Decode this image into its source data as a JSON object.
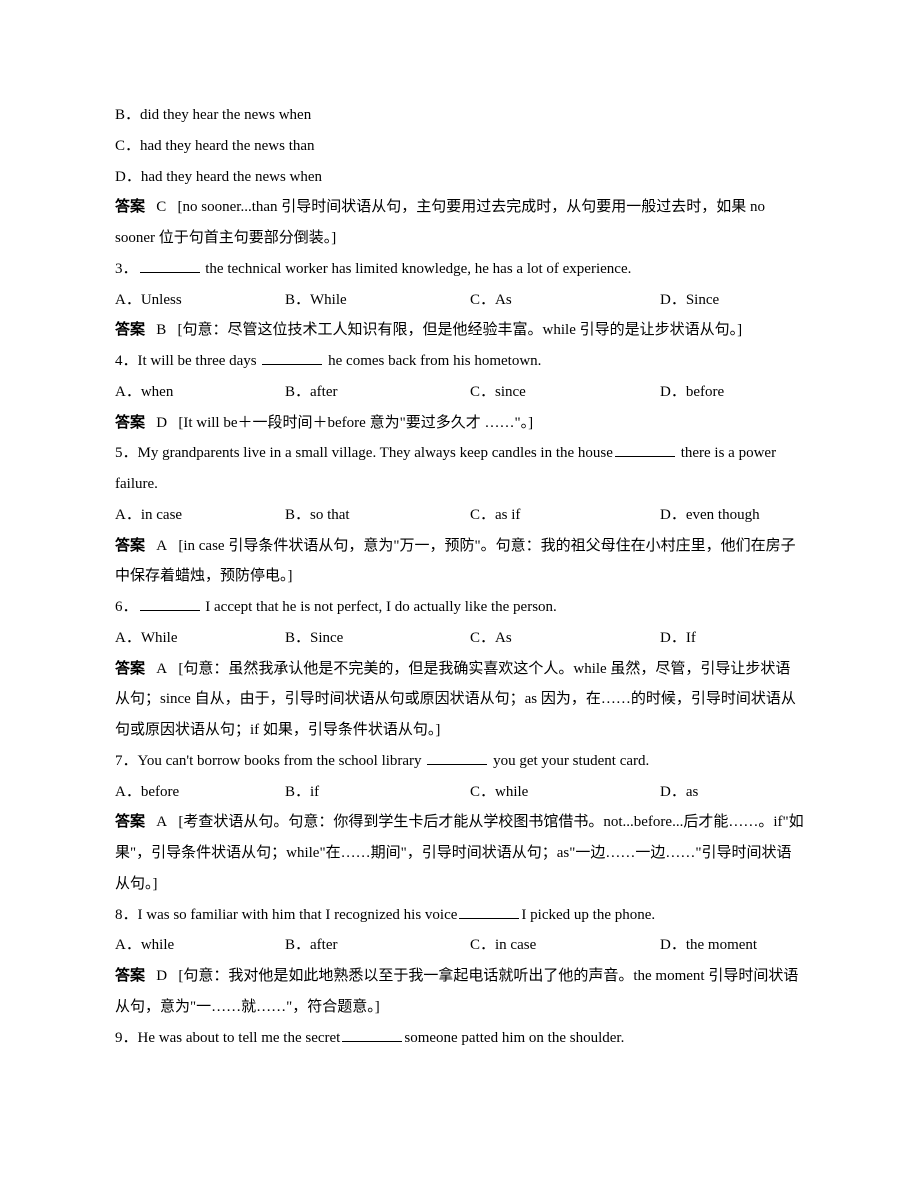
{
  "q2": {
    "optB": "B．did they hear the news when",
    "optC": "C．had they heard the news than",
    "optD": "D．had they heard the news when",
    "answerLabel": "答案",
    "answerLetter": "C",
    "explanation": "[no sooner...than 引导时间状语从句，主句要用过去完成时，从句要用一般过去时，如果 no sooner 位于句首主句要部分倒装。]"
  },
  "q3": {
    "numPrefix": "3．",
    "stemAfter": " the technical worker has limited knowledge, he has a lot of experience.",
    "optA": "A．Unless",
    "optB": "B．While",
    "optC": "C．As",
    "optD": "D．Since",
    "answerLabel": "答案",
    "answerLetter": "B",
    "explanation": "[句意：尽管这位技术工人知识有限，但是他经验丰富。while 引导的是让步状语从句。]"
  },
  "q4": {
    "numPrefix": "4．It will be three days ",
    "stemAfter": " he comes back from his hometown.",
    "optA": "A．when",
    "optB": "B．after",
    "optC": "C．since",
    "optD": "D．before",
    "answerLabel": "答案",
    "answerLetter": "D",
    "explanation": "[It will be＋一段时间＋before 意为\"要过多久才 ……\"。]"
  },
  "q5": {
    "numPrefix": "5．My grandparents live in a small village. They always keep candles in the house",
    "stemAfter": " there is a power failure.",
    "optA": "A．in case",
    "optB": "B．so that",
    "optC": "C．as if",
    "optD": "D．even though",
    "answerLabel": "答案",
    "answerLetter": "A",
    "explanation": "[in case 引导条件状语从句，意为\"万一，预防\"。句意：我的祖父母住在小村庄里，他们在房子中保存着蜡烛，预防停电。]"
  },
  "q6": {
    "numPrefix": "6．",
    "stemAfter": " I accept that he is not perfect, I do actually like the person.",
    "optA": "A．While",
    "optB": "B．Since",
    "optC": "C．As",
    "optD": "D．If",
    "answerLabel": "答案",
    "answerLetter": "A",
    "explanation": "[句意：虽然我承认他是不完美的，但是我确实喜欢这个人。while 虽然，尽管，引导让步状语从句；since 自从，由于，引导时间状语从句或原因状语从句；as 因为，在……的时候，引导时间状语从句或原因状语从句；if 如果，引导条件状语从句。]"
  },
  "q7": {
    "numPrefix": "7．You can't borrow books from the school library ",
    "stemAfter": " you get your student card.",
    "optA": "A．before",
    "optB": "B．if",
    "optC": "C．while",
    "optD": "D．as",
    "answerLabel": "答案",
    "answerLetter": "A",
    "explanation": "[考查状语从句。句意：你得到学生卡后才能从学校图书馆借书。not...before...后才能……。if\"如果\"，引导条件状语从句；while\"在……期间\"，引导时间状语从句；as\"一边……一边……\"引导时间状语从句。]"
  },
  "q8": {
    "numPrefix": "8．I was so familiar with him that I recognized his voice",
    "stemAfter": "I picked up the phone.",
    "optA": "A．while",
    "optB": "B．after",
    "optC": "C．in case",
    "optD": "D．the moment",
    "answerLabel": "答案",
    "answerLetter": "D",
    "explanation": "[句意：我对他是如此地熟悉以至于我一拿起电话就听出了他的声音。the moment 引导时间状语从句，意为\"一……就……\"，符合题意。]"
  },
  "q9": {
    "numPrefix": "9．He was about to tell me the secret",
    "stemAfter": "someone patted him on the shoulder."
  }
}
